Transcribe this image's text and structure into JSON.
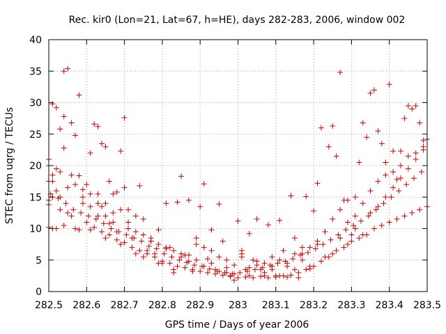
{
  "chart_data": {
    "type": "scatter",
    "title": "Rec. kir0 (Lon=21, Lat=67, h=HE), days 282-283, 2006, window 002",
    "xlabel": "GPS time / Days of year 2006",
    "ylabel": "STEC from uqrg / TECUs",
    "xlim": [
      282.5,
      283.5
    ],
    "ylim": [
      0,
      40
    ],
    "xticks": [
      282.5,
      282.6,
      282.7,
      282.8,
      282.9,
      283,
      283.1,
      283.2,
      283.3,
      283.4,
      283.5
    ],
    "xtick_labels": [
      "282.5",
      "282.6",
      "282.7",
      "282.8",
      "282.9",
      "283",
      "283.1",
      "283.2",
      "283.3",
      "283.4",
      "283.5"
    ],
    "yticks": [
      0,
      5,
      10,
      15,
      20,
      25,
      30,
      35,
      40
    ],
    "ytick_labels": [
      "0",
      "5",
      "10",
      "15",
      "20",
      "25",
      "30",
      "35",
      "40"
    ],
    "grid": true,
    "marker": "+",
    "color": "#cc0000",
    "series": [
      {
        "x": [
          282.5,
          282.5,
          282.5,
          282.5,
          282.5,
          282.51,
          282.51,
          282.51,
          282.51,
          282.52,
          282.52,
          282.53,
          282.53,
          282.54,
          282.54,
          282.54,
          282.55,
          282.56,
          282.56,
          282.57,
          282.58,
          282.58,
          282.59,
          282.6,
          282.61,
          282.61,
          282.62,
          282.63,
          282.63,
          282.64,
          282.64,
          282.65,
          282.65,
          282.66,
          282.66,
          282.67,
          282.68,
          282.68,
          282.69,
          282.7,
          282.7,
          282.71,
          282.72,
          282.73,
          282.74,
          282.75,
          282.76,
          282.77,
          282.78,
          282.79,
          282.8,
          282.81,
          282.82,
          282.83,
          282.84,
          282.85,
          282.86,
          282.87,
          282.88,
          282.89,
          282.9,
          282.91,
          282.92,
          282.93,
          282.94,
          282.95,
          282.96,
          282.97,
          282.98,
          282.99,
          283.0,
          283.01,
          283.02,
          283.03,
          283.04,
          283.05,
          283.06,
          283.07,
          283.08,
          283.09,
          283.1,
          283.11,
          283.12,
          283.13,
          283.14,
          283.15,
          283.16,
          283.17,
          283.18,
          283.19,
          283.2,
          283.21,
          283.22,
          283.23,
          283.24,
          283.25,
          283.26,
          283.27,
          283.28,
          283.29,
          283.3,
          283.31,
          283.32,
          283.33,
          283.34,
          283.35,
          283.36,
          283.37,
          283.38,
          283.39,
          283.4,
          283.41,
          283.42,
          283.43,
          283.44,
          283.45,
          283.46,
          283.47,
          283.48,
          283.49,
          283.5
        ],
        "y": [
          21.0,
          20.0,
          17.5,
          14.5,
          13.8,
          29.8,
          17.5,
          15.0,
          10.0,
          29.2,
          19.5,
          25.8,
          15.0,
          35.0,
          27.8,
          22.8,
          35.4,
          26.8,
          18.5,
          24.8,
          31.2,
          18.4,
          16.2,
          17.0,
          22.0,
          15.5,
          26.6,
          26.2,
          14.0,
          23.5,
          13.5,
          23.0,
          12.0,
          17.5,
          10.8,
          15.5,
          9.5,
          15.8,
          22.3,
          27.6,
          16.5,
          13.0,
          8.5,
          12.0,
          16.8,
          11.5,
          6.5,
          8.5,
          6.0,
          9.8,
          4.5,
          14.0,
          7.0,
          3.0,
          14.2,
          18.3,
          5.8,
          14.5,
          3.2,
          8.5,
          13.5,
          17.1,
          5.2,
          9.8,
          3.5,
          13.9,
          8.0,
          3.0,
          2.5,
          1.8,
          11.2,
          6.5,
          3.5,
          9.2,
          5.0,
          11.5,
          3.5,
          2.5,
          10.6,
          4.0,
          2.5,
          11.3,
          6.5,
          2.3,
          15.2,
          8.5,
          2.2,
          7.0,
          15.1,
          3.6,
          12.8,
          17.2,
          26.0,
          9.5,
          23.0,
          26.3,
          21.5,
          34.8,
          14.5,
          11.0,
          9.0,
          12.0,
          20.5,
          26.8,
          24.5,
          31.5,
          32.0,
          25.5,
          23.5,
          20.5,
          32.9,
          22.3,
          17.8,
          22.3,
          27.5,
          29.5,
          29.0,
          29.5,
          26.8,
          24.0,
          24.2
        ]
      },
      {
        "x": [
          282.52,
          282.53,
          282.55,
          282.57,
          282.59,
          282.61,
          282.63,
          282.65,
          282.67,
          282.69,
          282.71,
          282.73,
          282.75,
          282.77,
          282.79,
          282.81,
          282.83,
          282.85,
          282.87,
          282.89,
          282.91,
          282.93,
          282.95,
          282.97,
          282.99,
          283.01,
          283.03,
          283.05,
          283.07,
          283.09,
          283.11,
          283.13,
          283.15,
          283.17,
          283.19,
          283.21,
          283.23,
          283.25,
          283.27,
          283.29,
          283.31,
          283.33,
          283.35,
          283.37,
          283.39,
          283.41,
          283.43,
          283.45,
          283.47,
          283.49
        ],
        "y": [
          16.0,
          13.0,
          12.5,
          10.0,
          15.0,
          9.8,
          12.0,
          8.5,
          11.0,
          7.5,
          10.0,
          6.0,
          5.5,
          8.0,
          4.5,
          7.0,
          3.5,
          6.0,
          4.8,
          7.5,
          4.0,
          6.5,
          3.2,
          5.0,
          2.8,
          5.5,
          2.5,
          4.2,
          3.0,
          5.5,
          2.5,
          4.0,
          3.5,
          6.0,
          4.0,
          7.5,
          5.5,
          6.0,
          8.5,
          7.5,
          10.0,
          9.0,
          12.5,
          13.5,
          15.0,
          16.5,
          18.0,
          19.5,
          21.0,
          22.5
        ]
      },
      {
        "x": [
          282.5,
          282.52,
          282.54,
          282.56,
          282.58,
          282.6,
          282.62,
          282.64,
          282.66,
          282.68,
          282.7,
          282.72,
          282.74,
          282.76,
          282.78,
          282.8,
          282.82,
          282.84,
          282.86,
          282.88,
          282.9,
          282.92,
          282.94,
          282.96,
          282.98,
          283.0,
          283.02,
          283.04,
          283.06,
          283.08,
          283.1,
          283.12,
          283.14,
          283.16,
          283.18,
          283.2,
          283.22,
          283.24,
          283.26,
          283.28,
          283.3,
          283.32,
          283.34,
          283.36,
          283.38,
          283.4,
          283.42,
          283.44,
          283.46,
          283.48,
          283.5
        ],
        "y": [
          10.2,
          10.0,
          10.5,
          12.0,
          9.8,
          11.0,
          10.2,
          9.5,
          9.0,
          8.2,
          7.8,
          7.0,
          6.5,
          6.0,
          5.5,
          4.8,
          4.5,
          4.0,
          3.8,
          3.5,
          3.2,
          3.0,
          2.8,
          2.6,
          2.4,
          2.2,
          2.3,
          2.2,
          2.4,
          2.2,
          2.3,
          2.5,
          2.6,
          3.0,
          3.5,
          4.0,
          4.8,
          5.5,
          6.5,
          7.0,
          8.0,
          8.5,
          9.0,
          10.0,
          10.5,
          11.0,
          11.5,
          12.0,
          12.5,
          13.0,
          13.5
        ]
      },
      {
        "x": [
          282.51,
          282.53,
          282.55,
          282.57,
          282.59,
          282.61,
          282.63,
          282.65,
          282.67,
          282.69,
          282.71,
          282.73,
          282.75,
          282.77,
          282.79,
          282.81,
          282.83,
          282.85,
          282.87,
          282.89,
          282.91,
          282.93,
          282.95,
          282.97,
          282.99,
          283.01,
          283.03,
          283.05,
          283.07,
          283.09,
          283.11,
          283.13,
          283.15,
          283.17,
          283.19,
          283.21,
          283.23,
          283.25,
          283.27,
          283.29,
          283.31,
          283.33,
          283.35,
          283.37,
          283.39,
          283.41,
          283.43,
          283.45,
          283.47,
          283.49
        ],
        "y": [
          18.5,
          19.0,
          16.5,
          17.0,
          14.0,
          13.5,
          15.5,
          14.0,
          12.5,
          13.0,
          11.0,
          9.5,
          9.0,
          8.0,
          7.5,
          6.8,
          6.5,
          5.5,
          5.8,
          5.0,
          7.0,
          4.5,
          5.5,
          3.8,
          4.2,
          6.0,
          3.8,
          4.8,
          4.5,
          3.5,
          5.0,
          4.5,
          6.0,
          5.0,
          7.0,
          8.0,
          9.5,
          11.5,
          13.0,
          14.5,
          15.0,
          14.0,
          16.0,
          17.5,
          18.5,
          19.0,
          20.0,
          21.5,
          22.0,
          23.0
        ]
      },
      {
        "x": [
          282.505,
          282.525,
          282.545,
          282.565,
          282.585,
          282.605,
          282.625,
          282.645,
          282.665,
          282.685,
          282.705,
          282.725,
          282.745,
          282.765,
          282.785,
          282.805,
          282.825,
          282.845,
          282.865,
          282.885,
          282.905,
          282.925,
          282.945,
          282.965,
          282.985,
          283.005,
          283.025,
          283.045,
          283.065,
          283.085,
          283.105,
          283.125,
          283.145,
          283.165,
          283.185,
          283.205,
          283.225,
          283.245,
          283.265,
          283.285,
          283.305,
          283.325,
          283.345,
          283.365,
          283.385,
          283.405,
          283.425,
          283.445,
          283.465,
          283.485
        ],
        "y": [
          15.5,
          14.8,
          14.0,
          13.0,
          12.5,
          12.0,
          11.5,
          10.8,
          10.0,
          9.5,
          9.0,
          8.5,
          8.0,
          7.2,
          6.8,
          6.0,
          5.5,
          5.0,
          4.6,
          4.2,
          4.0,
          3.6,
          3.2,
          3.0,
          2.8,
          3.0,
          3.2,
          3.5,
          3.8,
          4.2,
          4.5,
          4.8,
          5.2,
          5.8,
          6.2,
          6.8,
          7.5,
          8.2,
          9.0,
          9.8,
          10.5,
          11.2,
          12.0,
          13.0,
          14.0,
          15.0,
          16.0,
          17.0,
          18.0,
          19.0
        ]
      }
    ]
  }
}
